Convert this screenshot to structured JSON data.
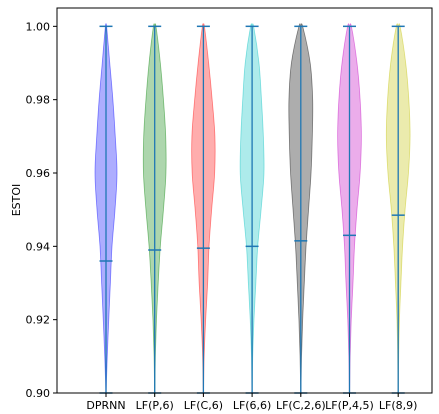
{
  "chart_data": {
    "type": "violin",
    "title": "",
    "xlabel": "",
    "ylabel": "ESTOI",
    "ylim": [
      0.9,
      1.005
    ],
    "yticks": [
      0.9,
      0.92,
      0.94,
      0.96,
      0.98,
      1.0
    ],
    "ytick_labels": [
      "0.90",
      "0.92",
      "0.94",
      "0.96",
      "0.98",
      "1.00"
    ],
    "categories": [
      "DPRNN",
      "LF(P,6)",
      "LF(C,6)",
      "LF(6,6)",
      "LF(C,2,6)",
      "LF(P,4,5)",
      "LF(8,9)"
    ],
    "fill_colors": [
      "#0000ff",
      "#008000",
      "#ff0000",
      "#00c0c0",
      "#000000",
      "#c000c0",
      "#c0c000"
    ],
    "line_color": "#1f77b4",
    "series": [
      {
        "min": 0.9,
        "max": 1.0,
        "mean": 0.936,
        "density": [
          [
            0.9,
            0.01
          ],
          [
            0.91,
            0.1
          ],
          [
            0.92,
            0.22
          ],
          [
            0.93,
            0.35
          ],
          [
            0.94,
            0.48
          ],
          [
            0.95,
            0.72
          ],
          [
            0.96,
            0.88
          ],
          [
            0.97,
            0.74
          ],
          [
            0.98,
            0.55
          ],
          [
            0.99,
            0.3
          ],
          [
            1.0,
            0.05
          ]
        ]
      },
      {
        "min": 0.9,
        "max": 1.0,
        "mean": 0.939,
        "density": [
          [
            0.9,
            0.01
          ],
          [
            0.91,
            0.05
          ],
          [
            0.92,
            0.14
          ],
          [
            0.93,
            0.28
          ],
          [
            0.94,
            0.45
          ],
          [
            0.95,
            0.7
          ],
          [
            0.96,
            0.9
          ],
          [
            0.97,
            0.88
          ],
          [
            0.98,
            0.7
          ],
          [
            0.99,
            0.45
          ],
          [
            1.0,
            0.1
          ]
        ]
      },
      {
        "min": 0.9,
        "max": 1.0,
        "mean": 0.9395,
        "density": [
          [
            0.9,
            0.01
          ],
          [
            0.91,
            0.06
          ],
          [
            0.92,
            0.18
          ],
          [
            0.93,
            0.34
          ],
          [
            0.94,
            0.45
          ],
          [
            0.95,
            0.66
          ],
          [
            0.96,
            0.9
          ],
          [
            0.97,
            0.92
          ],
          [
            0.98,
            0.7
          ],
          [
            0.99,
            0.42
          ],
          [
            1.0,
            0.08
          ]
        ]
      },
      {
        "min": 0.9,
        "max": 1.0,
        "mean": 0.94,
        "density": [
          [
            0.9,
            0.01
          ],
          [
            0.91,
            0.05
          ],
          [
            0.92,
            0.15
          ],
          [
            0.93,
            0.3
          ],
          [
            0.94,
            0.45
          ],
          [
            0.95,
            0.72
          ],
          [
            0.96,
            0.95
          ],
          [
            0.97,
            0.9
          ],
          [
            0.98,
            0.75
          ],
          [
            0.99,
            0.55
          ],
          [
            1.0,
            0.12
          ]
        ]
      },
      {
        "min": 0.9,
        "max": 1.0,
        "mean": 0.9415,
        "density": [
          [
            0.9,
            0.01
          ],
          [
            0.91,
            0.06
          ],
          [
            0.92,
            0.15
          ],
          [
            0.93,
            0.28
          ],
          [
            0.94,
            0.42
          ],
          [
            0.95,
            0.62
          ],
          [
            0.96,
            0.82
          ],
          [
            0.97,
            0.92
          ],
          [
            0.98,
            0.95
          ],
          [
            0.99,
            0.75
          ],
          [
            1.0,
            0.15
          ]
        ]
      },
      {
        "min": 0.9,
        "max": 1.0,
        "mean": 0.943,
        "density": [
          [
            0.9,
            0.01
          ],
          [
            0.91,
            0.05
          ],
          [
            0.92,
            0.14
          ],
          [
            0.93,
            0.28
          ],
          [
            0.94,
            0.4
          ],
          [
            0.95,
            0.6
          ],
          [
            0.96,
            0.85
          ],
          [
            0.97,
            0.95
          ],
          [
            0.98,
            0.85
          ],
          [
            0.99,
            0.6
          ],
          [
            1.0,
            0.15
          ]
        ]
      },
      {
        "min": 0.9,
        "max": 1.0,
        "mean": 0.9485,
        "density": [
          [
            0.9,
            0.01
          ],
          [
            0.91,
            0.04
          ],
          [
            0.92,
            0.1
          ],
          [
            0.93,
            0.22
          ],
          [
            0.94,
            0.35
          ],
          [
            0.95,
            0.55
          ],
          [
            0.96,
            0.82
          ],
          [
            0.97,
            0.95
          ],
          [
            0.98,
            0.85
          ],
          [
            0.99,
            0.6
          ],
          [
            1.0,
            0.15
          ]
        ]
      }
    ]
  }
}
